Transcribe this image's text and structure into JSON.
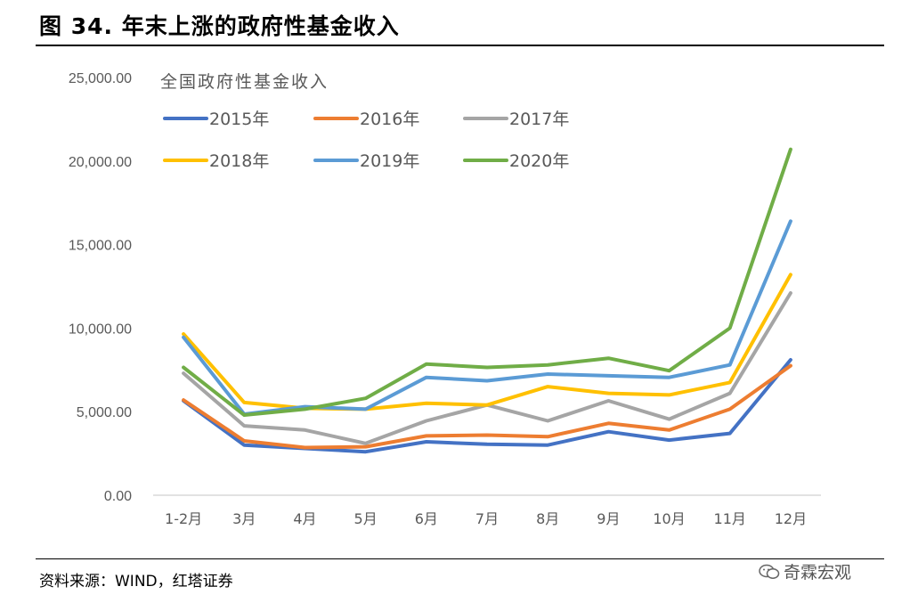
{
  "figure": {
    "title": "图 34. 年末上涨的政府性基金收入",
    "source": "资料来源：WIND，红塔证券",
    "watermark": "奇霖宏观"
  },
  "chart_data": {
    "type": "line",
    "title": "全国政府性基金收入",
    "xlabel": "",
    "ylabel": "",
    "categories": [
      "1-2月",
      "3月",
      "4月",
      "5月",
      "6月",
      "7月",
      "8月",
      "9月",
      "10月",
      "11月",
      "12月"
    ],
    "ylim": [
      0,
      25000
    ],
    "yticks": [
      "0.00",
      "5,000.00",
      "10,000.00",
      "15,000.00",
      "20,000.00",
      "25,000.00"
    ],
    "ytick_values": [
      0,
      5000,
      10000,
      15000,
      20000,
      25000
    ],
    "grid": false,
    "legend_position": "top-left",
    "series": [
      {
        "name": "2015年",
        "color": "#4472C4",
        "values": [
          5650,
          3000,
          2800,
          2600,
          3200,
          3050,
          3000,
          3800,
          3300,
          3700,
          8100
        ]
      },
      {
        "name": "2016年",
        "color": "#ED7D31",
        "values": [
          5700,
          3250,
          2850,
          2900,
          3550,
          3600,
          3500,
          4300,
          3900,
          5150,
          7750
        ]
      },
      {
        "name": "2017年",
        "color": "#A5A5A5",
        "values": [
          7300,
          4150,
          3900,
          3100,
          4450,
          5400,
          4450,
          5650,
          4550,
          6100,
          12100
        ]
      },
      {
        "name": "2018年",
        "color": "#FFC000",
        "values": [
          9650,
          5550,
          5200,
          5150,
          5500,
          5400,
          6500,
          6100,
          6000,
          6750,
          13200
        ]
      },
      {
        "name": "2019年",
        "color": "#5B9BD5",
        "values": [
          9450,
          4850,
          5300,
          5150,
          7050,
          6850,
          7250,
          7150,
          7050,
          7800,
          16400
        ]
      },
      {
        "name": "2020年",
        "color": "#70AD47",
        "values": [
          7650,
          4800,
          5150,
          5800,
          7850,
          7650,
          7800,
          8200,
          7450,
          10000,
          20700
        ]
      }
    ]
  }
}
